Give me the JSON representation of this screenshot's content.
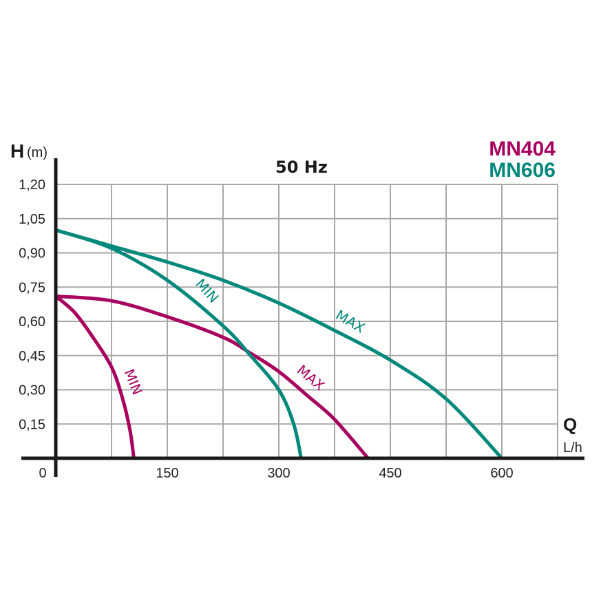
{
  "chart_data": {
    "type": "line",
    "title": "50 Hz",
    "ylabel": "H",
    "yunit": "(m)",
    "xlabel": "Q",
    "xunit": "L/h",
    "xlim": [
      0,
      675
    ],
    "ylim": [
      0,
      1.2
    ],
    "x_ticks": [
      "0",
      "150",
      "300",
      "450",
      "600"
    ],
    "x_tick_values": [
      0,
      150,
      300,
      450,
      600
    ],
    "y_ticks": [
      "0,15",
      "0,30",
      "0,45",
      "0,60",
      "0,75",
      "0,90",
      "1,05",
      "1,20"
    ],
    "y_tick_values": [
      0.15,
      0.3,
      0.45,
      0.6,
      0.75,
      0.9,
      1.05,
      1.2
    ],
    "grid": true,
    "legend_placement": "top-right",
    "models": [
      {
        "name": "MN404",
        "color": "#a8005e"
      },
      {
        "name": "MN606",
        "color": "#00897b"
      }
    ],
    "series": [
      {
        "model": "MN404",
        "label": "MIN",
        "color": "#a8005e",
        "x": [
          0,
          25,
          50,
          75,
          90,
          100,
          105
        ],
        "y": [
          0.71,
          0.64,
          0.53,
          0.4,
          0.26,
          0.12,
          0.0
        ]
      },
      {
        "model": "MN404",
        "label": "MAX",
        "color": "#a8005e",
        "x": [
          0,
          75,
          150,
          225,
          262,
          300,
          340,
          375,
          420
        ],
        "y": [
          0.71,
          0.69,
          0.62,
          0.53,
          0.46,
          0.38,
          0.27,
          0.17,
          0.0
        ]
      },
      {
        "model": "MN606",
        "label": "MIN",
        "color": "#00897b",
        "x": [
          0,
          75,
          150,
          225,
          262,
          300,
          320,
          330
        ],
        "y": [
          1.0,
          0.92,
          0.78,
          0.58,
          0.45,
          0.3,
          0.15,
          0.0
        ]
      },
      {
        "model": "MN606",
        "label": "MAX",
        "color": "#00897b",
        "x": [
          0,
          75,
          150,
          225,
          300,
          375,
          450,
          525,
          600
        ],
        "y": [
          1.0,
          0.93,
          0.86,
          0.78,
          0.68,
          0.56,
          0.43,
          0.26,
          0.0
        ]
      }
    ]
  }
}
